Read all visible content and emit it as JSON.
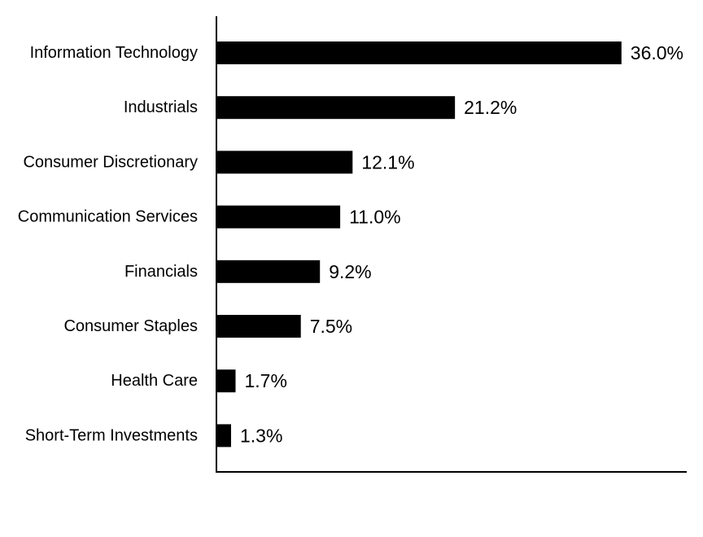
{
  "chart_data": {
    "type": "bar",
    "orientation": "horizontal",
    "categories": [
      "Information Technology",
      "Industrials",
      "Consumer Discretionary",
      "Communication Services",
      "Financials",
      "Consumer Staples",
      "Health Care",
      "Short-Term Investments"
    ],
    "values": [
      36.0,
      21.2,
      12.1,
      11.0,
      9.2,
      7.5,
      1.7,
      1.3
    ],
    "value_labels": [
      "36.0%",
      "21.2%",
      "12.1%",
      "11.0%",
      "9.2%",
      "7.5%",
      "1.7%",
      "1.3%"
    ],
    "title": "",
    "xlabel": "",
    "ylabel": "",
    "xlim": [
      0,
      41.8
    ],
    "grid": false,
    "legend": "none",
    "bar_color": "#000000",
    "axis_color": "#000000"
  }
}
